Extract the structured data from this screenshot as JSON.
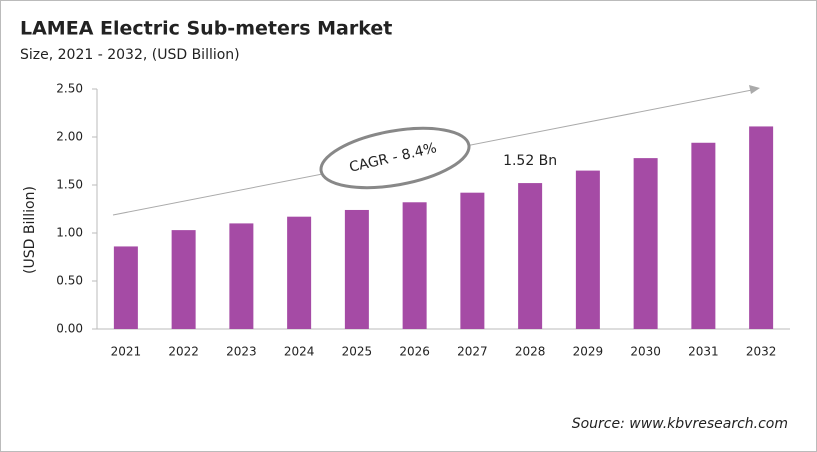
{
  "chart_data": {
    "type": "bar",
    "title": "LAMEA Electric Sub-meters Market",
    "subtitle": "Size, 2021 - 2032, (USD Billion)",
    "y_label": "(USD Billion)",
    "categories": [
      "2021",
      "2022",
      "2023",
      "2024",
      "2025",
      "2026",
      "2027",
      "2028",
      "2029",
      "2030",
      "2031",
      "2032"
    ],
    "values": [
      0.86,
      1.03,
      1.1,
      1.17,
      1.24,
      1.32,
      1.42,
      1.52,
      1.65,
      1.78,
      1.94,
      2.11
    ],
    "value_labels": [
      null,
      null,
      null,
      null,
      null,
      null,
      null,
      "1.52 Bn",
      null,
      null,
      null,
      null
    ],
    "color": "#a54ba5",
    "ylim": [
      0,
      2.5
    ],
    "yticks": [
      {
        "value": 0,
        "label": "0.00"
      },
      {
        "value": 0.5,
        "label": "0.50"
      },
      {
        "value": 1,
        "label": "1.00"
      },
      {
        "value": 1.5,
        "label": "1.50"
      },
      {
        "value": 2,
        "label": "2.00"
      },
      {
        "value": 2.5,
        "label": "2.50"
      }
    ],
    "annotation": "CAGR - 8.4%",
    "source": "Source: www.kbvresearch.com"
  }
}
